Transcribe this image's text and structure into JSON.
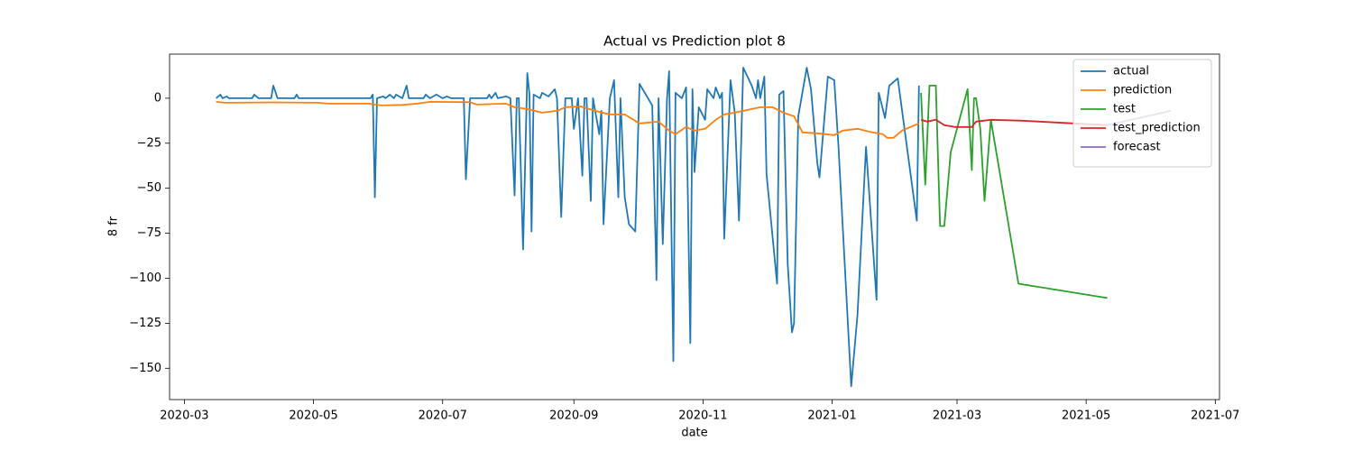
{
  "chart_data": {
    "type": "line",
    "title": "Actual vs Prediction plot 8",
    "x_label": "date",
    "y_label": "8 fr",
    "xlim": [
      "2020-02-23",
      "2021-07-03"
    ],
    "ylim": [
      -167.4,
      24.5
    ],
    "xticks": [
      {
        "value": "2020-03-01",
        "label": "2020-03"
      },
      {
        "value": "2020-05-01",
        "label": "2020-05"
      },
      {
        "value": "2020-07-01",
        "label": "2020-07"
      },
      {
        "value": "2020-09-01",
        "label": "2020-09"
      },
      {
        "value": "2020-11-01",
        "label": "2020-11"
      },
      {
        "value": "2021-01-01",
        "label": "2021-01"
      },
      {
        "value": "2021-03-01",
        "label": "2021-03"
      },
      {
        "value": "2021-05-01",
        "label": "2021-05"
      },
      {
        "value": "2021-07-01",
        "label": "2021-07"
      }
    ],
    "yticks": [
      0,
      {
        "value": -25,
        "label": "−25"
      },
      {
        "value": -50,
        "label": "−50"
      },
      {
        "value": -75,
        "label": "−75"
      },
      {
        "value": -100,
        "label": "−100"
      },
      {
        "value": -125,
        "label": "−125"
      },
      {
        "value": -150,
        "label": "−150"
      }
    ],
    "legend": "upper right",
    "grid": false,
    "series": [
      {
        "name": "actual",
        "color": "#1f77b4",
        "x": [
          "2020-03-16",
          "2020-03-18",
          "2020-03-19",
          "2020-03-21",
          "2020-03-22",
          "2020-04-02",
          "2020-04-03",
          "2020-04-05",
          "2020-04-11",
          "2020-04-12",
          "2020-04-14",
          "2020-04-22",
          "2020-04-23",
          "2020-04-24",
          "2020-05-28",
          "2020-05-29",
          "2020-05-30",
          "2020-05-31",
          "2020-06-03",
          "2020-06-04",
          "2020-06-06",
          "2020-06-08",
          "2020-06-09",
          "2020-06-12",
          "2020-06-14",
          "2020-06-15",
          "2020-06-22",
          "2020-06-23",
          "2020-06-25",
          "2020-06-28",
          "2020-07-01",
          "2020-07-03",
          "2020-07-05",
          "2020-07-11",
          "2020-07-12",
          "2020-07-14",
          "2020-07-22",
          "2020-07-23",
          "2020-07-24",
          "2020-07-26",
          "2020-07-27",
          "2020-07-31",
          "2020-08-02",
          "2020-08-04",
          "2020-08-05",
          "2020-08-06",
          "2020-08-08",
          "2020-08-10",
          "2020-08-11",
          "2020-08-12",
          "2020-08-13",
          "2020-08-16",
          "2020-08-17",
          "2020-08-20",
          "2020-08-23",
          "2020-08-24",
          "2020-08-26",
          "2020-08-28",
          "2020-08-31",
          "2020-09-01",
          "2020-09-03",
          "2020-09-05",
          "2020-09-06",
          "2020-09-07",
          "2020-09-09",
          "2020-09-10",
          "2020-09-13",
          "2020-09-14",
          "2020-09-15",
          "2020-09-18",
          "2020-09-20",
          "2020-09-22",
          "2020-09-23",
          "2020-09-25",
          "2020-09-27",
          "2020-09-30",
          "2020-10-02",
          "2020-10-06",
          "2020-10-08",
          "2020-10-10",
          "2020-10-11",
          "2020-10-13",
          "2020-10-15",
          "2020-10-16",
          "2020-10-18",
          "2020-10-19",
          "2020-10-22",
          "2020-10-24",
          "2020-10-26",
          "2020-10-27",
          "2020-10-28",
          "2020-10-30",
          "2020-11-02",
          "2020-11-03",
          "2020-11-06",
          "2020-11-07",
          "2020-11-09",
          "2020-11-10",
          "2020-11-11",
          "2020-11-14",
          "2020-11-16",
          "2020-11-18",
          "2020-11-20",
          "2020-11-24",
          "2020-11-26",
          "2020-11-27",
          "2020-11-28",
          "2020-11-30",
          "2020-12-01",
          "2020-12-06",
          "2020-12-07",
          "2020-12-09",
          "2020-12-11",
          "2020-12-13",
          "2020-12-14",
          "2020-12-16",
          "2020-12-20",
          "2020-12-22",
          "2020-12-25",
          "2020-12-26",
          "2020-12-30",
          "2021-01-02",
          "2021-01-04",
          "2021-01-10",
          "2021-01-13",
          "2021-01-17",
          "2021-01-22",
          "2021-01-23",
          "2021-01-26",
          "2021-01-28",
          "2021-02-01",
          "2021-02-10",
          "2021-02-11"
        ],
        "values": [
          0,
          2,
          0,
          1,
          0,
          0,
          2,
          0,
          0,
          7,
          0,
          0,
          2,
          0,
          0,
          2,
          -55,
          0,
          1,
          0,
          2,
          0,
          2,
          0,
          7,
          0,
          0,
          2,
          0,
          2,
          0,
          1,
          0,
          0,
          -45,
          0,
          0,
          2,
          0,
          3,
          0,
          1,
          0,
          -54,
          0,
          0,
          -84,
          14,
          2,
          -74,
          2,
          0,
          3,
          1,
          5,
          0,
          -66,
          0,
          0,
          -17,
          0,
          -43,
          0,
          0,
          -57,
          0,
          -20,
          -7,
          -70,
          0,
          10,
          -55,
          0,
          -55,
          -70,
          -74,
          8,
          0,
          -4,
          -101,
          0,
          -81,
          0,
          15,
          -146,
          3,
          0,
          6,
          -136,
          5,
          -41,
          -5,
          -12,
          5,
          0,
          6,
          0,
          3,
          -78,
          10,
          -8,
          -68,
          17,
          7,
          0,
          10,
          0,
          12,
          -42,
          -103,
          2,
          4,
          -92,
          -130,
          -125,
          -10,
          17,
          5,
          -36,
          -44,
          12,
          10,
          -27,
          -160,
          -120,
          -27,
          -112,
          3,
          -11,
          7,
          11,
          -68,
          7
        ]
      },
      {
        "name": "prediction",
        "color": "#ff7f0e",
        "x": [
          "2020-03-16",
          "2020-03-20",
          "2020-04-12",
          "2020-05-03",
          "2020-05-08",
          "2020-05-27",
          "2020-06-02",
          "2020-06-12",
          "2020-06-19",
          "2020-06-25",
          "2020-07-14",
          "2020-07-17",
          "2020-07-31",
          "2020-08-04",
          "2020-08-10",
          "2020-08-17",
          "2020-08-24",
          "2020-08-28",
          "2020-09-04",
          "2020-09-11",
          "2020-09-18",
          "2020-09-25",
          "2020-10-02",
          "2020-10-11",
          "2020-10-16",
          "2020-10-19",
          "2020-10-24",
          "2020-10-28",
          "2020-11-02",
          "2020-11-07",
          "2020-11-11",
          "2020-11-16",
          "2020-11-28",
          "2020-12-04",
          "2020-12-09",
          "2020-12-14",
          "2020-12-18",
          "2020-12-25",
          "2021-01-02",
          "2021-01-06",
          "2021-01-13",
          "2021-01-20",
          "2021-01-25",
          "2021-01-27",
          "2021-01-30",
          "2021-02-03",
          "2021-02-11"
        ],
        "values": [
          -2,
          -2.5,
          -2.3,
          -2.5,
          -3,
          -3,
          -4,
          -3.7,
          -3,
          -2,
          -2.2,
          -3.5,
          -3,
          -5,
          -6,
          -8,
          -7,
          -5,
          -4.5,
          -7,
          -9,
          -9,
          -14,
          -13,
          -18,
          -20,
          -16,
          -18,
          -17,
          -12,
          -9,
          -8,
          -5,
          -5,
          -8,
          -10,
          -19,
          -19.5,
          -20.5,
          -18,
          -17,
          -19,
          -20,
          -22,
          -22,
          -18,
          -14
        ]
      },
      {
        "name": "test",
        "color": "#2ca02c",
        "x": [
          "2021-02-12",
          "2021-02-14",
          "2021-02-16",
          "2021-02-19",
          "2021-02-21",
          "2021-02-23",
          "2021-02-26",
          "2021-03-06",
          "2021-03-08",
          "2021-03-09",
          "2021-03-10",
          "2021-03-12",
          "2021-03-14",
          "2021-03-17",
          "2021-03-30",
          "2021-05-11"
        ],
        "values": [
          3,
          -48,
          7,
          7,
          -71,
          -71,
          -30,
          5,
          -40,
          0,
          0,
          -17,
          -57,
          -12,
          -103,
          -111
        ]
      },
      {
        "name": "test_prediction",
        "color": "#d62728",
        "x": [
          "2021-02-12",
          "2021-02-15",
          "2021-02-19",
          "2021-02-23",
          "2021-02-28",
          "2021-03-08",
          "2021-03-10",
          "2021-03-17",
          "2021-04-01",
          "2021-05-11"
        ],
        "values": [
          -12,
          -13,
          -12,
          -15,
          -16,
          -16,
          -13,
          -12,
          -12.5,
          -15
        ]
      },
      {
        "name": "forecast",
        "color": "#9467bd",
        "x": [
          "2021-05-11",
          "2021-06-10"
        ],
        "values": [
          -15,
          -7
        ]
      }
    ]
  }
}
